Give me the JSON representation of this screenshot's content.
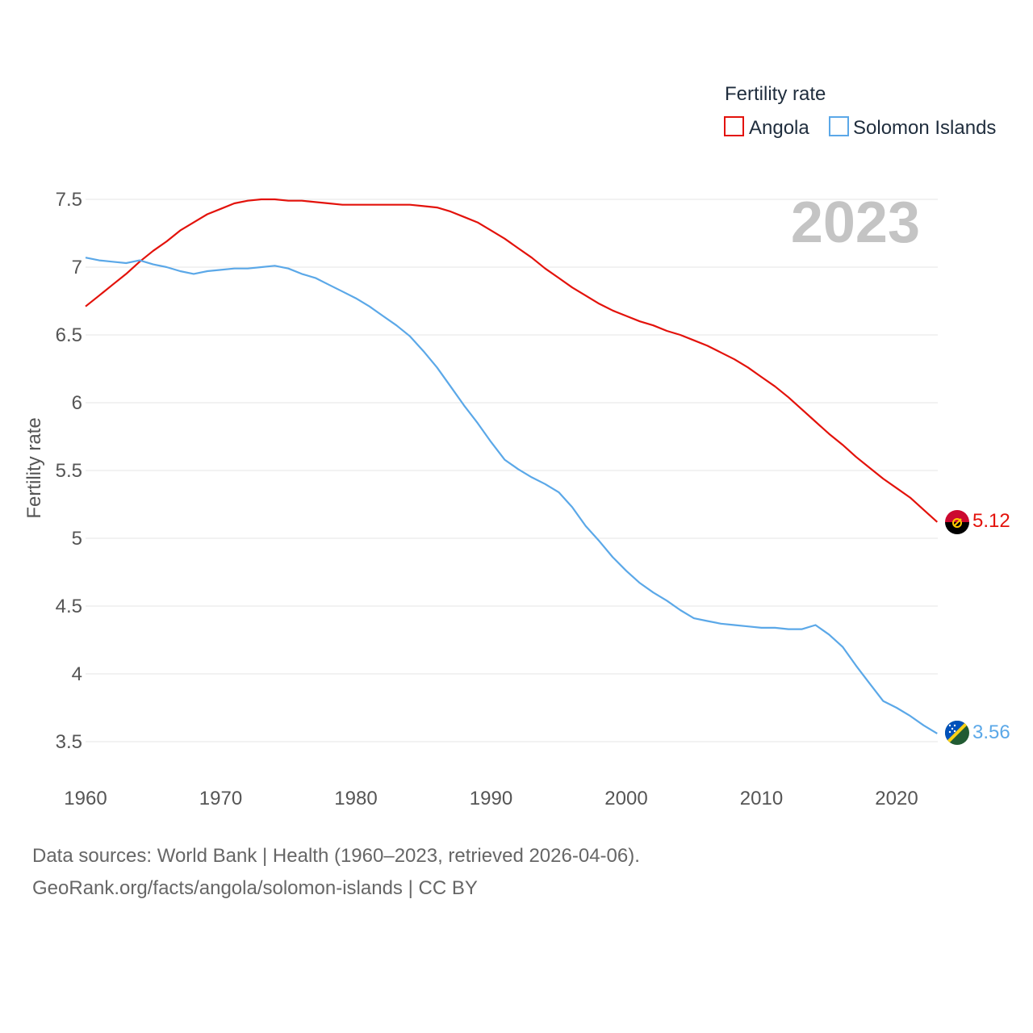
{
  "chart_data": {
    "type": "line",
    "title": "",
    "current_year_label": "2023",
    "xlabel": "",
    "ylabel": "Fertility rate",
    "xlim": [
      1960,
      2024
    ],
    "ylim": [
      3.3,
      7.65
    ],
    "x_ticks": [
      1960,
      1970,
      1980,
      1990,
      2000,
      2010,
      2020
    ],
    "y_ticks": [
      3.5,
      4,
      4.5,
      5,
      5.5,
      6,
      6.5,
      7,
      7.5
    ],
    "y_tick_labels": [
      "3.5",
      "4",
      "4.5",
      "5",
      "5.5",
      "6",
      "6.5",
      "7",
      "7.5"
    ],
    "x_tick_labels": [
      "1960",
      "1970",
      "1980",
      "1990",
      "2000",
      "2010",
      "2020"
    ],
    "legend": {
      "title": "Fertility rate",
      "position": "top-right",
      "entries": [
        "Angola",
        "Solomon Islands"
      ]
    },
    "x": [
      1960,
      1961,
      1962,
      1963,
      1964,
      1965,
      1966,
      1967,
      1968,
      1969,
      1970,
      1971,
      1972,
      1973,
      1974,
      1975,
      1976,
      1977,
      1978,
      1979,
      1980,
      1981,
      1982,
      1983,
      1984,
      1985,
      1986,
      1987,
      1988,
      1989,
      1990,
      1991,
      1992,
      1993,
      1994,
      1995,
      1996,
      1997,
      1998,
      1999,
      2000,
      2001,
      2002,
      2003,
      2004,
      2005,
      2006,
      2007,
      2008,
      2009,
      2010,
      2011,
      2012,
      2013,
      2014,
      2015,
      2016,
      2017,
      2018,
      2019,
      2020,
      2021,
      2022,
      2023
    ],
    "series": [
      {
        "name": "Angola",
        "color": "#e3120b",
        "end_value_label": "5.12",
        "flag": "angola",
        "values": [
          6.71,
          6.79,
          6.87,
          6.95,
          7.04,
          7.12,
          7.19,
          7.27,
          7.33,
          7.39,
          7.43,
          7.47,
          7.49,
          7.5,
          7.5,
          7.49,
          7.49,
          7.48,
          7.47,
          7.46,
          7.46,
          7.46,
          7.46,
          7.46,
          7.46,
          7.45,
          7.44,
          7.41,
          7.37,
          7.33,
          7.27,
          7.21,
          7.14,
          7.07,
          6.99,
          6.92,
          6.85,
          6.79,
          6.73,
          6.68,
          6.64,
          6.6,
          6.57,
          6.53,
          6.5,
          6.46,
          6.42,
          6.37,
          6.32,
          6.26,
          6.19,
          6.12,
          6.04,
          5.95,
          5.86,
          5.77,
          5.69,
          5.6,
          5.52,
          5.44,
          5.37,
          5.3,
          5.21,
          5.12
        ]
      },
      {
        "name": "Solomon Islands",
        "color": "#5ba8e8",
        "end_value_label": "3.56",
        "flag": "solomon-islands",
        "values": [
          7.07,
          7.05,
          7.04,
          7.03,
          7.05,
          7.02,
          7.0,
          6.97,
          6.95,
          6.97,
          6.98,
          6.99,
          6.99,
          7.0,
          7.01,
          6.99,
          6.95,
          6.92,
          6.87,
          6.82,
          6.77,
          6.71,
          6.64,
          6.57,
          6.49,
          6.38,
          6.26,
          6.12,
          5.98,
          5.85,
          5.71,
          5.58,
          5.51,
          5.45,
          5.4,
          5.34,
          5.23,
          5.09,
          4.98,
          4.86,
          4.76,
          4.67,
          4.6,
          4.54,
          4.47,
          4.41,
          4.39,
          4.37,
          4.36,
          4.35,
          4.34,
          4.34,
          4.33,
          4.33,
          4.36,
          4.29,
          4.2,
          4.06,
          3.93,
          3.8,
          3.75,
          3.69,
          3.62,
          3.56
        ]
      }
    ]
  },
  "footer": {
    "line1": "Data sources: World Bank | Health (1960–2023, retrieved 2026-04-06).",
    "line2": "GeoRank.org/facts/angola/solomon-islands | CC BY"
  }
}
